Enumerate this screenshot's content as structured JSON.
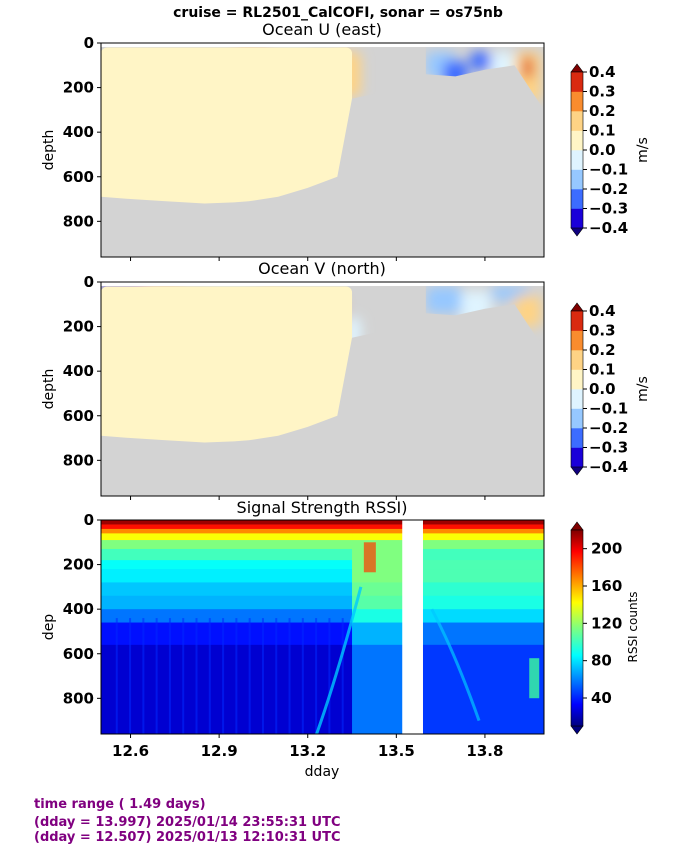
{
  "suptitle": "cruise = RL2501_CalCOFI,  sonar = os75nb",
  "footer": [
    "time range ( 1.49 days)",
    "(dday = 13.997) 2025/01/14 23:55:31 UTC",
    "(dday = 12.507) 2025/01/13 12:10:31 UTC"
  ],
  "colors": {
    "footer_text": "#800080",
    "no_data": "#d3d3d3"
  },
  "chart_data": [
    {
      "type": "heatmap",
      "title": "Ocean U (east)",
      "ylabel": "depth",
      "xlabel": "",
      "xlim": [
        12.5,
        14.0
      ],
      "ylim": [
        960,
        0
      ],
      "yticks": [
        0,
        200,
        400,
        600,
        800
      ],
      "xticks": [
        12.6,
        12.9,
        13.2,
        13.5,
        13.8
      ],
      "xtick_labels_shown": false,
      "colorbar": {
        "label": "m/s",
        "colormap": "jet",
        "levels": [
          -0.4,
          -0.3,
          -0.2,
          -0.1,
          0.0,
          0.1,
          0.2,
          0.3,
          0.4
        ],
        "ticks": [
          "0.4",
          "0.3",
          "0.2",
          "0.1",
          "0.0",
          "−0.1",
          "−0.2",
          "−0.3",
          "−0.4"
        ],
        "extend": "both"
      },
      "gap_ddays": [
        13.52,
        13.6
      ],
      "bottom_depth_profile": [
        [
          12.5,
          690
        ],
        [
          12.6,
          700
        ],
        [
          12.72,
          710
        ],
        [
          12.85,
          720
        ],
        [
          12.95,
          715
        ],
        [
          13.0,
          710
        ],
        [
          13.1,
          690
        ],
        [
          13.2,
          650
        ],
        [
          13.3,
          600
        ],
        [
          13.35,
          250
        ],
        [
          13.52,
          200
        ],
        [
          13.6,
          140
        ],
        [
          13.7,
          150
        ],
        [
          13.8,
          120
        ],
        [
          13.9,
          100
        ],
        [
          14.0,
          300
        ]
      ]
    },
    {
      "type": "heatmap",
      "title": "Ocean V (north)",
      "ylabel": "depth",
      "xlabel": "",
      "xlim": [
        12.5,
        14.0
      ],
      "ylim": [
        960,
        0
      ],
      "yticks": [
        0,
        200,
        400,
        600,
        800
      ],
      "xticks": [
        12.6,
        12.9,
        13.2,
        13.5,
        13.8
      ],
      "xtick_labels_shown": false,
      "colorbar": {
        "label": "m/s",
        "colormap": "jet",
        "levels": [
          -0.4,
          -0.3,
          -0.2,
          -0.1,
          0.0,
          0.1,
          0.2,
          0.3,
          0.4
        ],
        "ticks": [
          "0.4",
          "0.3",
          "0.2",
          "0.1",
          "0.0",
          "−0.1",
          "−0.2",
          "−0.3",
          "−0.4"
        ],
        "extend": "both"
      },
      "gap_ddays": [
        13.52,
        13.6
      ],
      "bottom_depth_profile": [
        [
          12.5,
          690
        ],
        [
          12.6,
          700
        ],
        [
          12.72,
          710
        ],
        [
          12.85,
          720
        ],
        [
          12.95,
          715
        ],
        [
          13.0,
          710
        ],
        [
          13.1,
          690
        ],
        [
          13.2,
          650
        ],
        [
          13.3,
          600
        ],
        [
          13.35,
          250
        ],
        [
          13.52,
          200
        ],
        [
          13.6,
          140
        ],
        [
          13.7,
          150
        ],
        [
          13.8,
          120
        ],
        [
          13.9,
          100
        ],
        [
          14.0,
          300
        ]
      ]
    },
    {
      "type": "heatmap",
      "title": "Signal Strength RSSI)",
      "ylabel": "dep",
      "xlabel": "dday",
      "xlim": [
        12.5,
        14.0
      ],
      "ylim": [
        960,
        0
      ],
      "yticks": [
        0,
        200,
        400,
        600,
        800
      ],
      "xticks": [
        12.6,
        12.9,
        13.2,
        13.5,
        13.8
      ],
      "xtick_labels_shown": true,
      "colorbar": {
        "label": "RSSI counts",
        "colormap": "jet",
        "range": [
          10,
          220
        ],
        "ticks": [
          "200",
          "160",
          "120",
          "80",
          "40"
        ],
        "extend": "both"
      },
      "gap_ddays": [
        13.52,
        13.59
      ]
    }
  ]
}
